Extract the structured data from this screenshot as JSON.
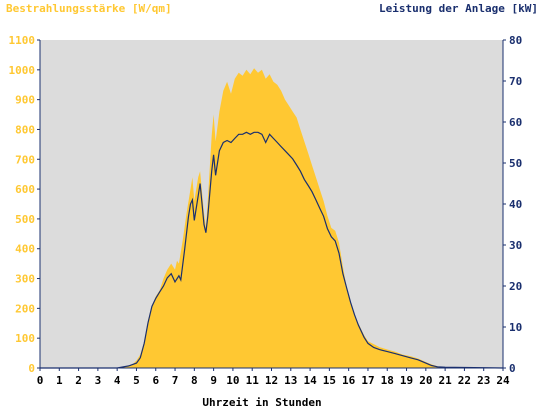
{
  "chart_data": {
    "type": "area",
    "title_left": "Bestrahlungsstärke [W/qm]",
    "title_right": "Leistung der Anlage [kW]",
    "xlabel": "Uhrzeit in Stunden",
    "xlim": [
      0,
      24
    ],
    "x_ticks": [
      "0",
      "1",
      "2",
      "3",
      "4",
      "5",
      "6",
      "7",
      "8",
      "9",
      "10",
      "11",
      "12",
      "13",
      "14",
      "15",
      "16",
      "17",
      "18",
      "19",
      "20",
      "21",
      "22",
      "23",
      "24"
    ],
    "y_left": {
      "ylim": [
        0,
        1100
      ],
      "ticks": [
        "0",
        "100",
        "200",
        "300",
        "400",
        "500",
        "600",
        "700",
        "800",
        "900",
        "1000",
        "1100"
      ]
    },
    "y_right": {
      "ylim": [
        0,
        80
      ],
      "ticks": [
        "0",
        "10",
        "20",
        "30",
        "40",
        "50",
        "60",
        "70",
        "80"
      ]
    },
    "grid": false,
    "colors": {
      "irradiance": "#ffc832",
      "power": "#1a2f6e",
      "plot_bg": "#dcdcdc",
      "axis": "#1a2f6e"
    },
    "series": [
      {
        "axis": "left",
        "style": "area",
        "points": [
          [
            0,
            0
          ],
          [
            4.0,
            0
          ],
          [
            4.5,
            5
          ],
          [
            4.8,
            12
          ],
          [
            5.0,
            25
          ],
          [
            5.2,
            45
          ],
          [
            5.4,
            90
          ],
          [
            5.6,
            160
          ],
          [
            5.8,
            210
          ],
          [
            6.0,
            240
          ],
          [
            6.2,
            260
          ],
          [
            6.4,
            300
          ],
          [
            6.6,
            330
          ],
          [
            6.8,
            350
          ],
          [
            7.0,
            330
          ],
          [
            7.1,
            360
          ],
          [
            7.2,
            350
          ],
          [
            7.4,
            430
          ],
          [
            7.6,
            520
          ],
          [
            7.8,
            600
          ],
          [
            7.9,
            640
          ],
          [
            8.0,
            560
          ],
          [
            8.2,
            640
          ],
          [
            8.3,
            660
          ],
          [
            8.5,
            520
          ],
          [
            8.6,
            470
          ],
          [
            8.7,
            560
          ],
          [
            8.9,
            780
          ],
          [
            9.0,
            850
          ],
          [
            9.1,
            760
          ],
          [
            9.3,
            860
          ],
          [
            9.5,
            930
          ],
          [
            9.7,
            960
          ],
          [
            9.9,
            920
          ],
          [
            10.1,
            970
          ],
          [
            10.3,
            990
          ],
          [
            10.5,
            980
          ],
          [
            10.7,
            1000
          ],
          [
            10.9,
            985
          ],
          [
            11.1,
            1005
          ],
          [
            11.3,
            990
          ],
          [
            11.5,
            1000
          ],
          [
            11.7,
            970
          ],
          [
            11.9,
            985
          ],
          [
            12.1,
            960
          ],
          [
            12.3,
            950
          ],
          [
            12.5,
            930
          ],
          [
            12.7,
            900
          ],
          [
            12.9,
            880
          ],
          [
            13.1,
            860
          ],
          [
            13.3,
            840
          ],
          [
            13.5,
            800
          ],
          [
            13.7,
            760
          ],
          [
            13.9,
            720
          ],
          [
            14.1,
            680
          ],
          [
            14.3,
            640
          ],
          [
            14.5,
            600
          ],
          [
            14.7,
            560
          ],
          [
            14.9,
            510
          ],
          [
            15.1,
            470
          ],
          [
            15.3,
            460
          ],
          [
            15.5,
            420
          ],
          [
            15.7,
            340
          ],
          [
            15.9,
            270
          ],
          [
            16.1,
            220
          ],
          [
            16.3,
            180
          ],
          [
            16.5,
            150
          ],
          [
            16.8,
            110
          ],
          [
            17.0,
            90
          ],
          [
            17.3,
            80
          ],
          [
            17.6,
            70
          ],
          [
            18.0,
            62
          ],
          [
            18.4,
            55
          ],
          [
            18.8,
            45
          ],
          [
            19.2,
            40
          ],
          [
            19.6,
            32
          ],
          [
            20.0,
            20
          ],
          [
            20.3,
            12
          ],
          [
            20.6,
            6
          ],
          [
            21.0,
            2
          ],
          [
            24,
            0
          ]
        ]
      },
      {
        "axis": "right",
        "style": "line",
        "points": [
          [
            0,
            0
          ],
          [
            4.0,
            0
          ],
          [
            4.6,
            0.5
          ],
          [
            5.0,
            1.2
          ],
          [
            5.2,
            2.5
          ],
          [
            5.4,
            6
          ],
          [
            5.6,
            11
          ],
          [
            5.8,
            15
          ],
          [
            6.0,
            17
          ],
          [
            6.2,
            18.5
          ],
          [
            6.4,
            20
          ],
          [
            6.6,
            22
          ],
          [
            6.8,
            23
          ],
          [
            7.0,
            21
          ],
          [
            7.2,
            22.5
          ],
          [
            7.3,
            21.5
          ],
          [
            7.5,
            29
          ],
          [
            7.7,
            37
          ],
          [
            7.8,
            40
          ],
          [
            7.9,
            41
          ],
          [
            8.0,
            36
          ],
          [
            8.2,
            42
          ],
          [
            8.3,
            45
          ],
          [
            8.5,
            35
          ],
          [
            8.6,
            33
          ],
          [
            8.7,
            37
          ],
          [
            8.9,
            48
          ],
          [
            9.0,
            52
          ],
          [
            9.1,
            47
          ],
          [
            9.3,
            53
          ],
          [
            9.5,
            55
          ],
          [
            9.7,
            55.5
          ],
          [
            9.9,
            55
          ],
          [
            10.1,
            56
          ],
          [
            10.3,
            57
          ],
          [
            10.5,
            57
          ],
          [
            10.7,
            57.5
          ],
          [
            10.9,
            57
          ],
          [
            11.1,
            57.5
          ],
          [
            11.3,
            57.5
          ],
          [
            11.5,
            57
          ],
          [
            11.7,
            55
          ],
          [
            11.9,
            57
          ],
          [
            12.1,
            56
          ],
          [
            12.3,
            55
          ],
          [
            12.5,
            54
          ],
          [
            12.7,
            53
          ],
          [
            12.9,
            52
          ],
          [
            13.1,
            51
          ],
          [
            13.3,
            49.5
          ],
          [
            13.5,
            48
          ],
          [
            13.7,
            46
          ],
          [
            13.9,
            44.5
          ],
          [
            14.1,
            43
          ],
          [
            14.3,
            41
          ],
          [
            14.5,
            39
          ],
          [
            14.7,
            37
          ],
          [
            14.9,
            34
          ],
          [
            15.1,
            32
          ],
          [
            15.3,
            31
          ],
          [
            15.5,
            28
          ],
          [
            15.7,
            23
          ],
          [
            15.9,
            19.5
          ],
          [
            16.1,
            16
          ],
          [
            16.3,
            13
          ],
          [
            16.5,
            10.5
          ],
          [
            16.8,
            7.5
          ],
          [
            17.0,
            6
          ],
          [
            17.3,
            5
          ],
          [
            17.6,
            4.5
          ],
          [
            18.0,
            4
          ],
          [
            18.4,
            3.5
          ],
          [
            18.8,
            3
          ],
          [
            19.2,
            2.5
          ],
          [
            19.6,
            2
          ],
          [
            20.0,
            1.2
          ],
          [
            20.3,
            0.6
          ],
          [
            20.6,
            0.3
          ],
          [
            21.0,
            0.2
          ],
          [
            24,
            0
          ]
        ]
      }
    ]
  }
}
